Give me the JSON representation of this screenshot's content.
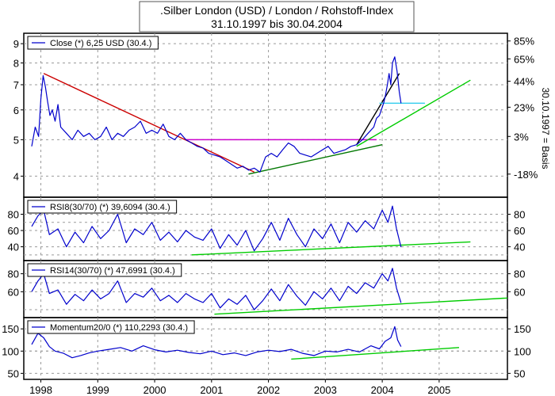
{
  "header": {
    "title": ".Silber London (USD) / London / Rohstoff-Index",
    "subtitle": "31.10.1997 bis 30.04.2004"
  },
  "right_axis_label": "30.10.1997 = Basis",
  "chart_data": [
    {
      "type": "line",
      "name": "price",
      "legend": "Close (*) 6,25 USD (30.4.)",
      "scale": "log",
      "ylim": [
        3.55,
        9.5
      ],
      "y_ticks": [
        4,
        5,
        6,
        7,
        8,
        9
      ],
      "right_ticks": [
        {
          "value": 4.05,
          "label": "-18%"
        },
        {
          "value": 5.1,
          "label": "3%"
        },
        {
          "value": 6.1,
          "label": "23%"
        },
        {
          "value": 7.15,
          "label": "44%"
        },
        {
          "value": 8.2,
          "label": "65%"
        },
        {
          "value": 9.15,
          "label": "85%"
        }
      ],
      "series": [
        {
          "color": "#0000cc",
          "x": [
            1997.84,
            1997.9,
            1997.96,
            1998.0,
            1998.04,
            1998.08,
            1998.12,
            1998.16,
            1998.2,
            1998.25,
            1998.3,
            1998.35,
            1998.45,
            1998.55,
            1998.65,
            1998.75,
            1998.85,
            1998.95,
            1999.05,
            1999.15,
            1999.25,
            1999.35,
            1999.45,
            1999.55,
            1999.65,
            1999.75,
            1999.85,
            1999.95,
            2000.05,
            2000.15,
            2000.25,
            2000.35,
            2000.45,
            2000.55,
            2000.65,
            2000.75,
            2000.85,
            2000.95,
            2001.05,
            2001.15,
            2001.25,
            2001.35,
            2001.45,
            2001.55,
            2001.65,
            2001.75,
            2001.85,
            2001.95,
            2002.05,
            2002.15,
            2002.25,
            2002.35,
            2002.45,
            2002.55,
            2002.65,
            2002.75,
            2002.85,
            2002.95,
            2003.05,
            2003.15,
            2003.25,
            2003.35,
            2003.45,
            2003.55,
            2003.65,
            2003.75,
            2003.85,
            2003.9,
            2003.95,
            2004.0,
            2004.03,
            2004.06,
            2004.09,
            2004.12,
            2004.15,
            2004.18,
            2004.22,
            2004.26,
            2004.3,
            2004.33
          ],
          "values": [
            4.8,
            5.4,
            5.1,
            6.4,
            7.4,
            6.9,
            6.3,
            5.8,
            6.0,
            5.6,
            6.2,
            5.4,
            5.2,
            5.0,
            5.3,
            5.1,
            5.2,
            5.0,
            5.1,
            5.4,
            5.0,
            5.2,
            5.1,
            5.3,
            5.4,
            5.6,
            5.2,
            5.3,
            5.2,
            5.5,
            5.1,
            5.0,
            5.2,
            5.0,
            4.9,
            4.8,
            4.75,
            4.6,
            4.55,
            4.5,
            4.4,
            4.3,
            4.2,
            4.25,
            4.15,
            4.2,
            4.1,
            4.5,
            4.6,
            4.5,
            4.7,
            4.9,
            4.8,
            4.6,
            4.55,
            4.5,
            4.6,
            4.7,
            4.8,
            4.6,
            4.65,
            4.7,
            4.8,
            4.85,
            5.0,
            5.2,
            5.4,
            5.7,
            5.8,
            6.1,
            6.3,
            6.6,
            7.0,
            7.5,
            7.0,
            8.0,
            8.3,
            7.6,
            6.7,
            6.25
          ]
        }
      ],
      "trendlines": [
        {
          "color": "#cc0000",
          "from": [
            1998.05,
            7.5
          ],
          "to": [
            2001.75,
            4.1
          ]
        },
        {
          "color": "#cc00cc",
          "from": [
            2000.55,
            5.0
          ],
          "to": [
            2003.9,
            5.0
          ]
        },
        {
          "color": "#007700",
          "from": [
            2001.65,
            4.05
          ],
          "to": [
            2004.0,
            4.85
          ]
        },
        {
          "color": "#000000",
          "from": [
            2003.55,
            4.85
          ],
          "to": [
            2004.3,
            7.5
          ]
        },
        {
          "color": "#00cc00",
          "from": [
            2003.55,
            4.8
          ],
          "to": [
            2005.55,
            7.2
          ]
        },
        {
          "color": "#33ccee",
          "from": [
            2003.95,
            6.25
          ],
          "to": [
            2004.75,
            6.25
          ]
        }
      ]
    },
    {
      "type": "line",
      "name": "rsi8",
      "legend": "RSI8(30/70) (*) 39,6094 (30.4.)",
      "ylim": [
        25,
        98
      ],
      "y_ticks": [
        40,
        60,
        80
      ],
      "right_ticks": [
        40,
        60,
        80
      ],
      "guides": [
        30,
        70
      ],
      "series": [
        {
          "color": "#0000cc",
          "x": [
            1997.84,
            1997.95,
            1998.05,
            1998.15,
            1998.3,
            1998.45,
            1998.6,
            1998.75,
            1998.9,
            1999.05,
            1999.2,
            1999.35,
            1999.5,
            1999.65,
            1999.8,
            1999.95,
            2000.1,
            2000.25,
            2000.4,
            2000.55,
            2000.7,
            2000.85,
            2001.0,
            2001.15,
            2001.3,
            2001.45,
            2001.6,
            2001.75,
            2001.9,
            2002.05,
            2002.2,
            2002.35,
            2002.5,
            2002.65,
            2002.8,
            2002.95,
            2003.1,
            2003.25,
            2003.4,
            2003.55,
            2003.7,
            2003.85,
            2004.0,
            2004.1,
            2004.18,
            2004.25,
            2004.33
          ],
          "values": [
            65,
            78,
            85,
            55,
            62,
            40,
            58,
            45,
            65,
            50,
            60,
            80,
            45,
            62,
            55,
            70,
            48,
            58,
            46,
            60,
            52,
            48,
            62,
            38,
            55,
            42,
            60,
            35,
            50,
            70,
            48,
            75,
            55,
            40,
            62,
            50,
            68,
            45,
            70,
            58,
            72,
            62,
            85,
            70,
            90,
            62,
            39.6
          ]
        }
      ],
      "trendlines": [
        {
          "color": "#00cc00",
          "from": [
            2000.65,
            30
          ],
          "to": [
            2005.55,
            46
          ]
        }
      ]
    },
    {
      "type": "line",
      "name": "rsi14",
      "legend": "RSI14(30/70) (*) 47,6991 (30.4.)",
      "ylim": [
        33,
        92
      ],
      "y_ticks": [
        60,
        80
      ],
      "right_ticks": [
        60,
        80
      ],
      "guides": [
        40,
        70
      ],
      "series": [
        {
          "color": "#0000cc",
          "x": [
            1997.84,
            1997.95,
            1998.05,
            1998.15,
            1998.3,
            1998.45,
            1998.6,
            1998.75,
            1998.9,
            1999.05,
            1999.2,
            1999.35,
            1999.5,
            1999.65,
            1999.8,
            1999.95,
            2000.1,
            2000.25,
            2000.4,
            2000.55,
            2000.7,
            2000.85,
            2001.0,
            2001.15,
            2001.3,
            2001.45,
            2001.6,
            2001.75,
            2001.9,
            2002.05,
            2002.2,
            2002.35,
            2002.5,
            2002.65,
            2002.8,
            2002.95,
            2003.1,
            2003.25,
            2003.4,
            2003.55,
            2003.7,
            2003.85,
            2004.0,
            2004.1,
            2004.18,
            2004.25,
            2004.33
          ],
          "values": [
            60,
            72,
            80,
            58,
            62,
            46,
            57,
            50,
            62,
            52,
            58,
            72,
            48,
            58,
            54,
            64,
            50,
            56,
            48,
            58,
            52,
            48,
            58,
            42,
            52,
            46,
            56,
            40,
            50,
            63,
            50,
            68,
            55,
            45,
            60,
            52,
            64,
            50,
            66,
            58,
            70,
            64,
            80,
            72,
            86,
            64,
            47.7
          ]
        }
      ],
      "trendlines": [
        {
          "color": "#00cc00",
          "from": [
            2001.05,
            35
          ],
          "to": [
            2006.2,
            53
          ]
        }
      ]
    },
    {
      "type": "line",
      "name": "momentum",
      "legend": "Momentum20/0 (*) 110,2293 (30.4.)",
      "ylim": [
        40,
        170
      ],
      "y_ticks": [
        50,
        100,
        150
      ],
      "right_ticks": [
        50,
        100,
        150
      ],
      "guides": [
        100
      ],
      "series": [
        {
          "color": "#0000cc",
          "x": [
            1997.84,
            1997.95,
            1998.05,
            1998.15,
            1998.25,
            1998.4,
            1998.55,
            1998.7,
            1998.85,
            1999.0,
            1999.2,
            1999.4,
            1999.6,
            1999.8,
            2000.0,
            2000.2,
            2000.4,
            2000.6,
            2000.8,
            2001.0,
            2001.2,
            2001.4,
            2001.6,
            2001.8,
            2002.0,
            2002.2,
            2002.4,
            2002.6,
            2002.8,
            2003.0,
            2003.2,
            2003.4,
            2003.6,
            2003.8,
            2003.95,
            2004.05,
            2004.15,
            2004.22,
            2004.27,
            2004.33
          ],
          "values": [
            115,
            140,
            130,
            110,
            100,
            95,
            85,
            90,
            96,
            100,
            104,
            108,
            100,
            112,
            103,
            98,
            102,
            97,
            94,
            100,
            92,
            96,
            90,
            98,
            102,
            99,
            104,
            95,
            90,
            100,
            98,
            104,
            98,
            112,
            105,
            122,
            130,
            155,
            125,
            110.2
          ]
        }
      ],
      "trendlines": [
        {
          "color": "#00cc00",
          "from": [
            2002.4,
            82
          ],
          "to": [
            2005.35,
            108
          ]
        }
      ]
    }
  ],
  "x_axis": {
    "xlim": [
      1997.7,
      2006.2
    ],
    "labels": [
      {
        "value": 1998.0,
        "label": "1998"
      },
      {
        "value": 1999.0,
        "label": "1999"
      },
      {
        "value": 2000.0,
        "label": "2000"
      },
      {
        "value": 2001.0,
        "label": "2001"
      },
      {
        "value": 2002.0,
        "label": "2002"
      },
      {
        "value": 2003.0,
        "label": "2003"
      },
      {
        "value": 2004.0,
        "label": "2004"
      },
      {
        "value": 2005.0,
        "label": "2005"
      }
    ]
  },
  "colors": {
    "frame": "#000000",
    "grid": "#9a9a9a",
    "price_line": "#0000cc"
  }
}
